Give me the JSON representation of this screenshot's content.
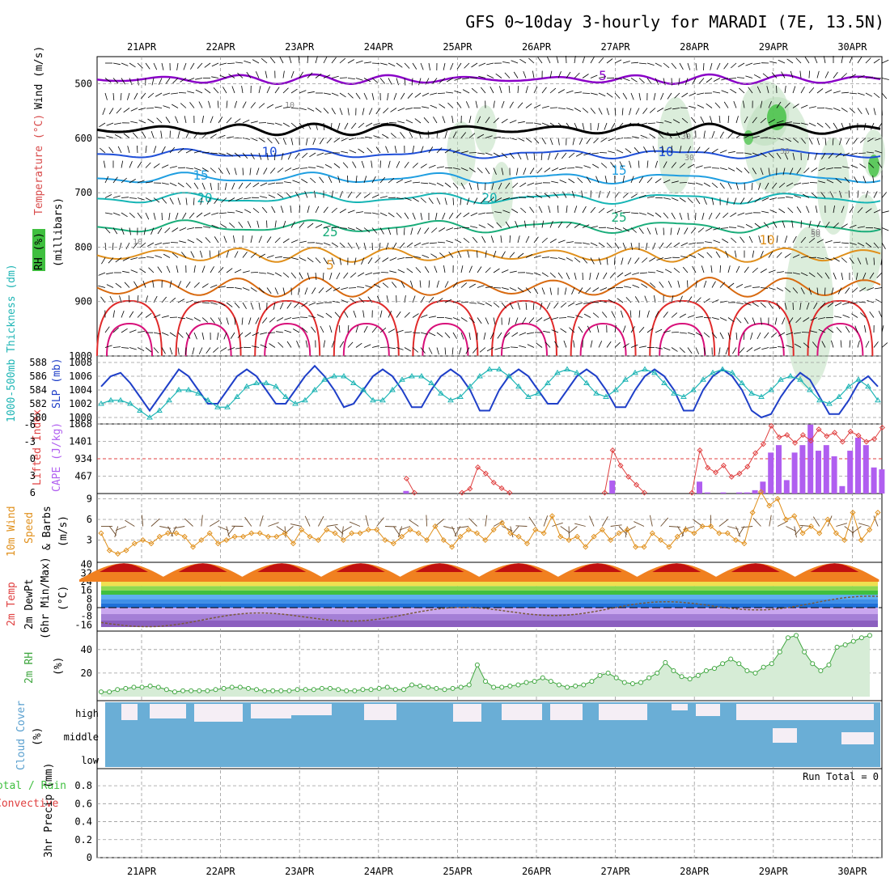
{
  "title": "GFS 0~10day 3-hourly for MARADI (7E, 13.5N)",
  "dates": [
    "21APR",
    "22APR",
    "23APR",
    "24APR",
    "25APR",
    "26APR",
    "27APR",
    "28APR",
    "29APR",
    "30APR"
  ],
  "colors": {
    "temp_purple": "#8a00c8",
    "temp_black": "#000000",
    "temp_blue": "#1f4fd8",
    "temp_ltblue": "#1f9ee0",
    "temp_teal": "#16b5b5",
    "temp_green": "#1aad7a",
    "temp_orange": "#e0901c",
    "temp_dkorange": "#d86a10",
    "temp_red": "#e02a2a",
    "temp_magenta": "#d8107a",
    "rh_green": "#3fbf3f",
    "slp": "#1f3fc8",
    "thickness": "#1fb5b5",
    "cape": "#b05ef0",
    "lifted": "#e04040",
    "wind10": "#e0901c",
    "rh2m": "#3fa63f",
    "cloud": "#6aaed6",
    "barbs": "#000000"
  },
  "panels": {
    "upper": {
      "ylabel_rh": "RH (%)",
      "ylabel_temp": "Temperature (°C)",
      "ylabel_wind": "Wind (m/s)",
      "ylabel_p": "(millibars)",
      "yticks": [
        "500",
        "600",
        "700",
        "800",
        "900",
        "1000"
      ],
      "contour_labels": [
        "5",
        "10",
        "15",
        "20",
        "25",
        "5",
        "10",
        "15",
        "20",
        "25",
        "10",
        "10",
        "30",
        "30",
        "50",
        "50",
        "10",
        "50"
      ]
    },
    "slp": {
      "ylabel_thick": "1000-500mb Thickness (dm)",
      "ylabel_slp": "SLP (mb)",
      "ticks_thick": [
        "588",
        "586",
        "584",
        "582",
        "580"
      ],
      "ticks_slp": [
        "1008",
        "1006",
        "1004",
        "1002",
        "1000"
      ]
    },
    "cape": {
      "ylabel_li": "Lifted Index",
      "ylabel_cape": "CAPE (J/kg)",
      "ticks_li": [
        "-6",
        "-3",
        "0",
        "3",
        "6"
      ],
      "ticks_cape": [
        "1868",
        "1401",
        "934",
        "467"
      ]
    },
    "wind10": {
      "ylabel_a": "10m Wind",
      "ylabel_b": "Speed",
      "ylabel_c": "& Barbs",
      "ylabel_unit": "(m/s)",
      "ticks": [
        "9",
        "6",
        "3"
      ]
    },
    "temp2m": {
      "ylabel_a": "2m Temp",
      "ylabel_b": "2m DewPt",
      "ylabel_c": "(6hr Min/Max)",
      "ylabel_unit": "(°C)",
      "ticks": [
        "40",
        "32",
        "24",
        "16",
        "8",
        "0",
        "-8",
        "-16"
      ]
    },
    "rh2m": {
      "ylabel": "2m RH",
      "unit": "(%)",
      "ticks": [
        "40",
        "20"
      ]
    },
    "cloud": {
      "ylabel": "Cloud Cover",
      "unit": "(%)",
      "levels": [
        "high",
        "middle",
        "low"
      ]
    },
    "precip": {
      "ylabel_a": "Total / Rain",
      "ylabel_b": "Convective",
      "ylabel_c": "3hr Precip (mm)",
      "ticks": [
        "0.8",
        "0.6",
        "0.4",
        "0.2",
        "0"
      ],
      "run_total": "Run Total = 0"
    }
  },
  "chart_data": [
    {
      "type": "line",
      "title": "1000-500mb Thickness (dm) / SLP (mb)",
      "x_unit": "3-hourly steps from 20APR 12Z",
      "series": [
        {
          "name": "SLP (mb)",
          "values": [
            1004.5,
            1006,
            1006.5,
            1005,
            1003,
            1001,
            1003,
            1005,
            1007,
            1006,
            1004,
            1002,
            1002,
            1004,
            1006,
            1007,
            1006,
            1004,
            1002,
            1002,
            1004,
            1006,
            1007.5,
            1006,
            1004,
            1001.5,
            1002,
            1004,
            1006,
            1007,
            1006,
            1004,
            1001.5,
            1001.5,
            1004,
            1006,
            1007,
            1006,
            1004,
            1001,
            1001,
            1004,
            1006,
            1007,
            1006,
            1004,
            1002,
            1002,
            1004,
            1006,
            1007,
            1006,
            1004,
            1001.5,
            1001.5,
            1004,
            1006,
            1007,
            1006,
            1004,
            1001,
            1001,
            1004,
            1006,
            1007,
            1006,
            1004,
            1001,
            1000,
            1000.5,
            1003,
            1005,
            1006.5,
            1005.5,
            1003,
            1000.5,
            1000.5,
            1002.5,
            1005,
            1006,
            1004.5
          ]
        },
        {
          "name": "Thickness (dm)",
          "values": [
            582,
            582.5,
            582.5,
            582,
            581,
            580,
            581,
            582.5,
            584,
            584,
            583.5,
            582.5,
            581.5,
            581.5,
            583,
            584.5,
            585,
            585,
            584.5,
            583,
            582,
            582.5,
            584,
            585.5,
            586,
            586,
            585,
            584,
            582.5,
            582.5,
            584,
            585.5,
            586,
            586,
            585,
            583.5,
            582.5,
            583,
            584.5,
            586,
            587,
            587,
            586,
            584.5,
            583,
            583.5,
            585,
            586.5,
            587,
            586.5,
            585,
            583.5,
            583,
            584,
            585.5,
            586.5,
            587,
            586.5,
            585,
            583.5,
            583,
            584,
            585.5,
            586.5,
            587,
            586.5,
            585,
            583.5,
            583,
            584,
            585.5,
            586,
            585.5,
            584,
            582.5,
            582,
            583,
            584.5,
            585.5,
            584.5,
            582.5
          ]
        }
      ],
      "ylim_slp": [
        1000,
        1008
      ],
      "ylim_thick": [
        580,
        588
      ]
    },
    {
      "type": "bar",
      "title": "CAPE (J/kg) / Lifted Index",
      "x_unit": "3-hourly steps from 20APR 12Z",
      "series": [
        {
          "name": "CAPE (J/kg)",
          "values": [
            0,
            0,
            0,
            0,
            0,
            0,
            0,
            0,
            0,
            0,
            0,
            0,
            0,
            0,
            0,
            0,
            0,
            0,
            0,
            0,
            0,
            0,
            0,
            0,
            0,
            0,
            0,
            0,
            0,
            0,
            0,
            0,
            0,
            0,
            0,
            0,
            0,
            0,
            70,
            0,
            0,
            0,
            0,
            0,
            0,
            0,
            0,
            0,
            0,
            0,
            0,
            0,
            0,
            0,
            0,
            0,
            0,
            0,
            0,
            0,
            0,
            0,
            0,
            0,
            0,
            0,
            0,
            0,
            0,
            0,
            0,
            0,
            0,
            0,
            0,
            0,
            0,
            0,
            0,
            0,
            0,
            0,
            0
          ]
        },
        {
          "name": "CAPE late (J/kg)",
          "values": [
            0,
            0,
            0,
            0,
            0,
            0,
            0,
            0,
            0,
            0,
            0,
            0,
            0,
            0,
            0,
            0,
            0,
            0,
            0,
            0,
            0,
            0,
            0,
            0,
            0,
            0,
            0,
            0,
            0,
            0,
            0,
            0,
            0,
            0,
            0,
            0,
            0,
            0,
            0,
            0,
            0,
            0,
            0,
            0,
            0,
            0,
            0,
            0,
            0,
            0,
            0,
            0,
            0,
            0,
            0,
            0,
            0,
            0,
            0,
            0,
            0,
            0,
            0,
            0,
            350,
            0,
            0,
            0,
            0,
            0,
            0,
            0,
            0,
            0,
            0,
            0,
            0,
            0,
            0,
            0,
            0,
            0,
            0
          ]
        }
      ],
      "cape_bars": [
        [
          38,
          70
        ],
        [
          64,
          350
        ],
        [
          75,
          320
        ],
        [
          76,
          30
        ],
        [
          78,
          30
        ],
        [
          80,
          30
        ],
        [
          81,
          30
        ],
        [
          82,
          90
        ],
        [
          83,
          320
        ],
        [
          84,
          1100
        ],
        [
          85,
          1300
        ],
        [
          86,
          360
        ],
        [
          87,
          1100
        ],
        [
          88,
          1300
        ],
        [
          89,
          1850
        ],
        [
          90,
          1150
        ],
        [
          91,
          1300
        ],
        [
          92,
          1000
        ],
        [
          93,
          200
        ],
        [
          94,
          1150
        ],
        [
          95,
          1500
        ],
        [
          96,
          1300
        ],
        [
          97,
          700
        ],
        [
          98,
          650
        ]
      ],
      "lifted_index": [
        [
          38,
          3.5
        ],
        [
          39,
          6
        ],
        [
          45,
          6
        ],
        [
          46,
          5.3
        ],
        [
          47,
          1.5
        ],
        [
          48,
          2.6
        ],
        [
          49,
          4.2
        ],
        [
          50,
          5.2
        ],
        [
          51,
          6
        ],
        [
          63,
          6
        ],
        [
          64,
          -1.5
        ],
        [
          65,
          1.2
        ],
        [
          66,
          3.2
        ],
        [
          67,
          4.6
        ],
        [
          68,
          6
        ],
        [
          74,
          6
        ],
        [
          75,
          -1.5
        ],
        [
          76,
          1.6
        ],
        [
          77,
          2.4
        ],
        [
          78,
          1.2
        ],
        [
          79,
          3.2
        ],
        [
          80,
          2.6
        ],
        [
          81,
          1.4
        ],
        [
          82,
          -1
        ],
        [
          83,
          -2.6
        ],
        [
          84,
          -5.8
        ],
        [
          85,
          -3.8
        ],
        [
          86,
          -4.2
        ],
        [
          87,
          -2.8
        ],
        [
          88,
          -4.2
        ],
        [
          89,
          -3.2
        ],
        [
          90,
          -5.2
        ],
        [
          91,
          -4
        ],
        [
          92,
          -4.6
        ],
        [
          93,
          -3
        ],
        [
          94,
          -4.8
        ],
        [
          95,
          -4.1
        ],
        [
          96,
          -3
        ],
        [
          97,
          -3.5
        ],
        [
          98,
          -5.5
        ]
      ],
      "ylim_li": [
        6,
        -6
      ],
      "ylim_cape": [
        0,
        1868
      ]
    },
    {
      "type": "line",
      "title": "10m Wind Speed (m/s)",
      "series": [
        {
          "name": "Speed",
          "values": [
            4,
            1.5,
            1,
            1.5,
            2.5,
            3,
            2.5,
            3.5,
            4,
            4,
            3.5,
            2,
            3,
            4,
            2.5,
            3,
            3.5,
            3.5,
            4,
            4,
            3.5,
            3.5,
            4,
            2.5,
            4.5,
            3.5,
            3,
            4.5,
            4,
            3,
            4,
            4,
            4.5,
            4.5,
            3,
            2.5,
            3.5,
            4.5,
            4,
            3,
            5,
            3,
            2,
            3.5,
            4.5,
            4,
            3,
            4.5,
            5.5,
            4,
            3.5,
            2.5,
            4.5,
            4,
            6.5,
            3.5,
            3,
            3.5,
            2,
            3.5,
            4.5,
            3,
            4,
            4.5,
            2,
            2,
            4,
            3,
            2,
            3.5,
            4.5,
            4,
            5,
            5,
            4,
            4,
            3,
            2.5,
            7,
            10,
            8,
            9,
            6,
            6.5,
            4,
            5,
            4,
            6,
            4,
            3,
            7,
            3,
            4.5,
            7
          ]
        }
      ],
      "ylim": [
        0,
        10
      ]
    },
    {
      "type": "area",
      "title": "2m RH (%)",
      "series": [
        {
          "name": "2m RH (%)",
          "values": [
            4,
            4,
            6,
            7,
            8,
            8,
            9,
            8,
            6,
            4,
            5,
            5,
            5,
            5,
            6,
            7,
            8,
            8,
            7,
            6,
            5,
            5,
            5,
            5,
            6,
            6,
            6,
            7,
            7,
            6,
            5,
            5,
            6,
            6,
            7,
            8,
            6,
            6,
            10,
            9,
            8,
            7,
            6,
            7,
            8,
            10,
            27,
            13,
            8,
            8,
            9,
            10,
            12,
            13,
            16,
            13,
            10,
            8,
            9,
            10,
            13,
            18,
            20,
            16,
            12,
            11,
            12,
            16,
            20,
            29,
            22,
            17,
            15,
            18,
            22,
            24,
            28,
            32,
            28,
            22,
            20,
            25,
            28,
            38,
            50,
            52,
            38,
            28,
            22,
            27,
            42,
            44,
            47,
            50,
            52
          ]
        }
      ],
      "ylim": [
        0,
        55
      ]
    },
    {
      "type": "line",
      "title": "3hr Precip (mm)",
      "series": [
        {
          "name": "Total / Rain",
          "values": [
            0,
            0,
            0,
            0,
            0,
            0,
            0,
            0,
            0,
            0
          ]
        }
      ],
      "ylim": [
        0,
        0.9
      ]
    }
  ]
}
